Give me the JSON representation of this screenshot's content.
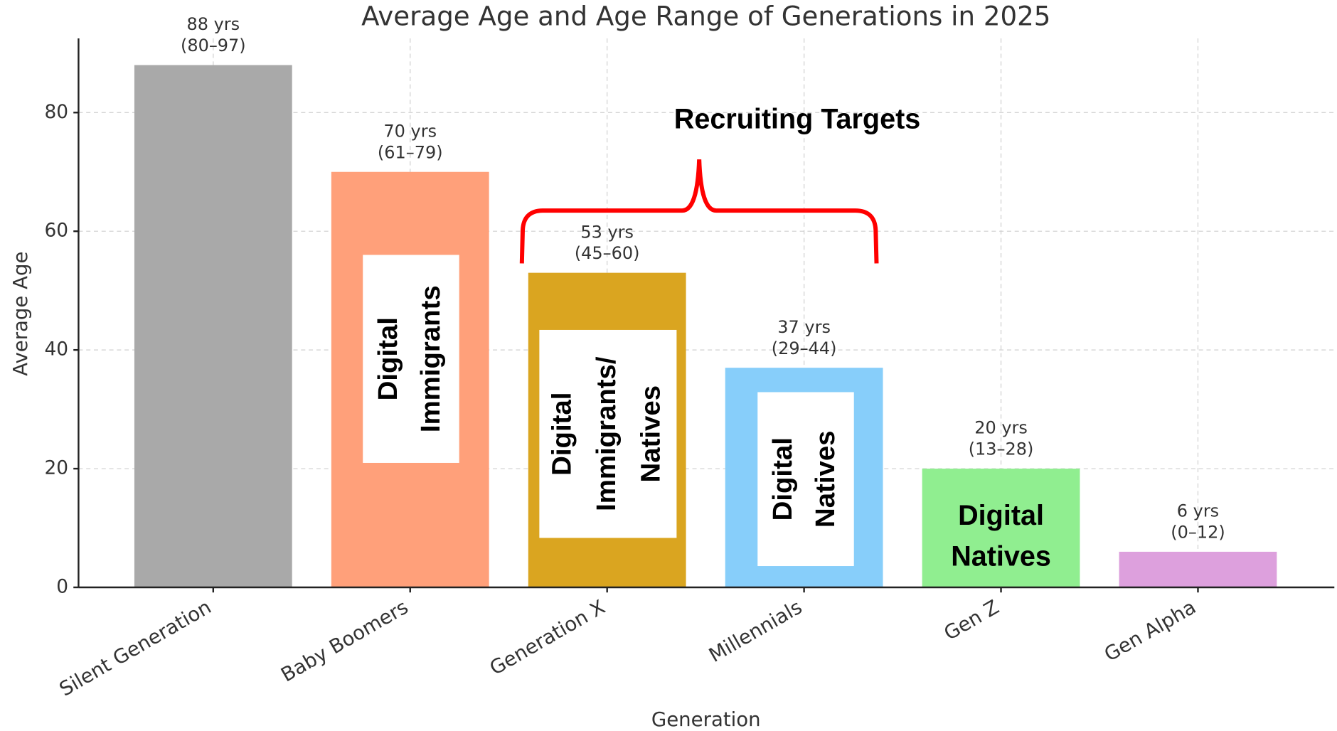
{
  "chart_data": {
    "type": "bar",
    "title": "Average Age and Age Range of Generations in 2025",
    "x_label": "Generation",
    "y_label": "Average Age",
    "categories": [
      "Silent Generation",
      "Baby Boomers",
      "Generation X",
      "Millennials",
      "Gen Z",
      "Gen Alpha"
    ],
    "values": [
      88,
      70,
      53,
      37,
      20,
      6
    ],
    "value_labels": [
      "88 yrs",
      "70 yrs",
      "53 yrs",
      "37 yrs",
      "20 yrs",
      "6 yrs"
    ],
    "ranges": [
      "(80–97)",
      "(61–79)",
      "(45–60)",
      "(29–44)",
      "(13–28)",
      "(0–12)"
    ],
    "colors": [
      "#a9a9a9",
      "#ffa07a",
      "#daa520",
      "#87cefa",
      "#90ee90",
      "#dda0dd"
    ],
    "ylim": [
      0,
      92.5
    ],
    "yticks": [
      0,
      20,
      40,
      60,
      80
    ],
    "grid": true,
    "bracket_label": "Recruiting Targets",
    "annotations": [
      {
        "lines": [
          "Digital",
          "Immigrants"
        ]
      },
      {
        "lines": [
          "Digital",
          "Immigrants/",
          "Natives"
        ]
      },
      {
        "lines": [
          "Digital",
          "Natives"
        ]
      },
      {
        "lines": [
          "Digital",
          "Natives"
        ]
      }
    ]
  }
}
